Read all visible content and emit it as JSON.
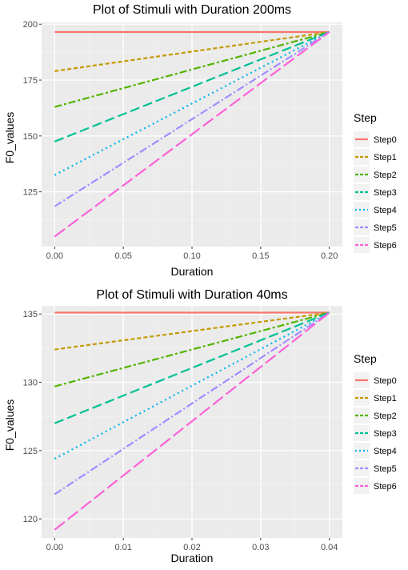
{
  "chart_data": [
    {
      "type": "line",
      "title": "Plot of Stimuli with Duration 200ms",
      "xlabel": "Duration",
      "ylabel": "F0_values",
      "xlim": [
        -0.0095,
        0.2095
      ],
      "ylim": [
        100.5,
        200.8
      ],
      "x_ticks": [
        0.0,
        0.05,
        0.1,
        0.15,
        0.2
      ],
      "x_tick_labels": [
        "0.00",
        "0.05",
        "0.10",
        "0.15",
        "0.20"
      ],
      "y_ticks": [
        125,
        150,
        175,
        200
      ],
      "y_tick_labels": [
        "125",
        "150",
        "175",
        "200"
      ],
      "grid": true,
      "legend": {
        "title": "Step",
        "position": "right"
      },
      "series": [
        {
          "name": "Step0",
          "color": "#F8766D",
          "dash": "solid",
          "x": [
            0,
            0.2
          ],
          "y": [
            196.5,
            196.5
          ]
        },
        {
          "name": "Step1",
          "color": "#C49A00",
          "dash": "dotted-dash",
          "x": [
            0,
            0.2
          ],
          "y": [
            179.0,
            196.5
          ]
        },
        {
          "name": "Step2",
          "color": "#53B400",
          "dash": "dotdash",
          "x": [
            0,
            0.2
          ],
          "y": [
            163.0,
            196.5
          ]
        },
        {
          "name": "Step3",
          "color": "#00C094",
          "dash": "longdash",
          "x": [
            0,
            0.2
          ],
          "y": [
            147.5,
            196.5
          ]
        },
        {
          "name": "Step4",
          "color": "#00B6EB",
          "dash": "dotted",
          "x": [
            0,
            0.2
          ],
          "y": [
            132.5,
            196.5
          ]
        },
        {
          "name": "Step5",
          "color": "#A58AFF",
          "dash": "dashdot",
          "x": [
            0,
            0.2
          ],
          "y": [
            118.5,
            196.5
          ]
        },
        {
          "name": "Step6",
          "color": "#FB61D7",
          "dash": "long",
          "x": [
            0,
            0.2
          ],
          "y": [
            105.0,
            196.5
          ]
        }
      ]
    },
    {
      "type": "line",
      "title": "Plot of Stimuli with Duration 40ms",
      "xlabel": "Duration",
      "ylabel": "F0_values",
      "xlim": [
        -0.0019,
        0.0419
      ],
      "ylim": [
        118.6,
        135.6
      ],
      "x_ticks": [
        0.0,
        0.01,
        0.02,
        0.03,
        0.04
      ],
      "x_tick_labels": [
        "0.00",
        "0.01",
        "0.02",
        "0.03",
        "0.04"
      ],
      "y_ticks": [
        120,
        125,
        130,
        135
      ],
      "y_tick_labels": [
        "120",
        "125",
        "130",
        "135"
      ],
      "grid": true,
      "legend": {
        "title": "Step",
        "position": "right"
      },
      "series": [
        {
          "name": "Step0",
          "color": "#F8766D",
          "dash": "solid",
          "x": [
            0,
            0.04
          ],
          "y": [
            135.1,
            135.1
          ]
        },
        {
          "name": "Step1",
          "color": "#C49A00",
          "dash": "dotted-dash",
          "x": [
            0,
            0.04
          ],
          "y": [
            132.4,
            135.1
          ]
        },
        {
          "name": "Step2",
          "color": "#53B400",
          "dash": "dotdash",
          "x": [
            0,
            0.04
          ],
          "y": [
            129.7,
            135.1
          ]
        },
        {
          "name": "Step3",
          "color": "#00C094",
          "dash": "longdash",
          "x": [
            0,
            0.04
          ],
          "y": [
            127.0,
            135.1
          ]
        },
        {
          "name": "Step4",
          "color": "#00B6EB",
          "dash": "dotted",
          "x": [
            0,
            0.04
          ],
          "y": [
            124.4,
            135.1
          ]
        },
        {
          "name": "Step5",
          "color": "#A58AFF",
          "dash": "dashdot",
          "x": [
            0,
            0.04
          ],
          "y": [
            121.8,
            135.1
          ]
        },
        {
          "name": "Step6",
          "color": "#FB61D7",
          "dash": "long",
          "x": [
            0,
            0.04
          ],
          "y": [
            119.2,
            135.1
          ]
        }
      ]
    }
  ]
}
